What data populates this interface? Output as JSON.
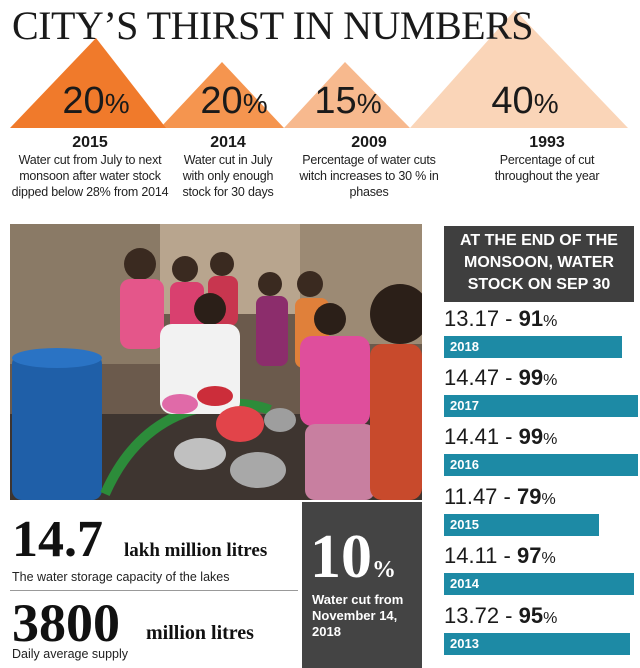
{
  "title": "CITY’S THIRST IN NUMBERS",
  "highlights": [
    {
      "value": "20",
      "unit": "%",
      "year": "2015",
      "description": "Water cut from July to next monsoon after water stock dipped below 28% from 2014",
      "color": "#f07a2b"
    },
    {
      "value": "20",
      "unit": "%",
      "year": "2014",
      "description": "Water cut in July with only enough stock for 30 days",
      "color": "#f5954f"
    },
    {
      "value": "15",
      "unit": "%",
      "year": "2009",
      "description": "Percentage of water cuts witch increases to 30 % in phases",
      "color": "#f7b98e"
    },
    {
      "value": "40",
      "unit": "%",
      "year": "1993",
      "description": "Percentage of cut throughout the year",
      "color": "#fad5b8"
    }
  ],
  "stock_panel": {
    "heading": "AT THE END OF THE MONSOON, WATER STOCK ON SEP 30",
    "rows": [
      {
        "amount": "13.17",
        "sep": " - ",
        "percent": "91",
        "unit": "%",
        "year": "2018",
        "fraction": 0.91
      },
      {
        "amount": "14.47",
        "sep": " - ",
        "percent": "99",
        "unit": "%",
        "year": "2017",
        "fraction": 0.99
      },
      {
        "amount": "14.41",
        "sep": " - ",
        "percent": "99",
        "unit": "%",
        "year": "2016",
        "fraction": 0.99
      },
      {
        "amount": "11.47",
        "sep": " - ",
        "percent": "79",
        "unit": "%",
        "year": "2015",
        "fraction": 0.79
      },
      {
        "amount": "14.11",
        "sep": " - ",
        "percent": "97",
        "unit": "%",
        "year": "2014",
        "fraction": 0.97
      },
      {
        "amount": "13.72",
        "sep": " - ",
        "percent": "95",
        "unit": "%",
        "year": "2013",
        "fraction": 0.95
      }
    ],
    "bar_color": "#1d8aa5"
  },
  "capacity": {
    "value": "14.7",
    "unit": "lakh million litres",
    "caption": "The water storage capacity of the lakes"
  },
  "supply": {
    "value": "3800",
    "unit": "million litres",
    "caption": "Daily average supply"
  },
  "cut": {
    "value": "10",
    "unit": "%",
    "caption": "Water cut from November 14, 2018"
  }
}
